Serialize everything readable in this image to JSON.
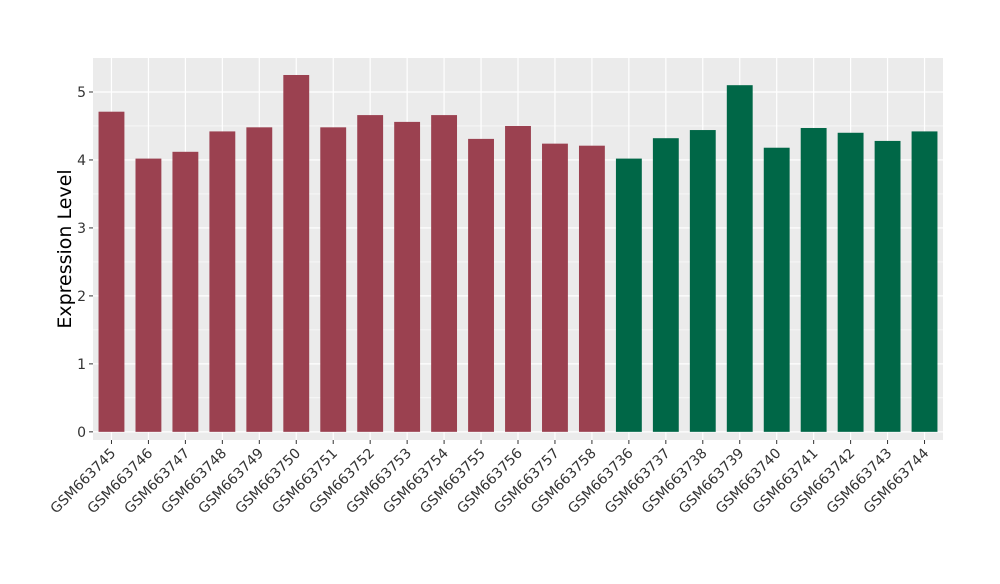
{
  "chart_data": {
    "type": "bar",
    "title": "",
    "xlabel": "",
    "ylabel": "Expression Level",
    "ylim": [
      -0.12,
      5.5
    ],
    "yticks": [
      0,
      1,
      2,
      3,
      4,
      5
    ],
    "grid": true,
    "legend": "none",
    "background_color": "#ebebeb",
    "gridline_color": "#ffffff",
    "group_colors": [
      "#9b4150",
      "#006747"
    ],
    "categories": [
      "GSM663745",
      "GSM663746",
      "GSM663747",
      "GSM663748",
      "GSM663749",
      "GSM663750",
      "GSM663751",
      "GSM663752",
      "GSM663753",
      "GSM663754",
      "GSM663755",
      "GSM663756",
      "GSM663757",
      "GSM663758",
      "GSM663736",
      "GSM663737",
      "GSM663738",
      "GSM663739",
      "GSM663740",
      "GSM663741",
      "GSM663742",
      "GSM663743",
      "GSM663744"
    ],
    "values": [
      4.71,
      4.02,
      4.12,
      4.42,
      4.48,
      5.25,
      4.48,
      4.66,
      4.56,
      4.66,
      4.31,
      4.5,
      4.24,
      4.21,
      4.02,
      4.32,
      4.44,
      5.1,
      4.18,
      4.47,
      4.4,
      4.28,
      4.42
    ],
    "group_index": [
      0,
      0,
      0,
      0,
      0,
      0,
      0,
      0,
      0,
      0,
      0,
      0,
      0,
      0,
      1,
      1,
      1,
      1,
      1,
      1,
      1,
      1,
      1
    ]
  }
}
